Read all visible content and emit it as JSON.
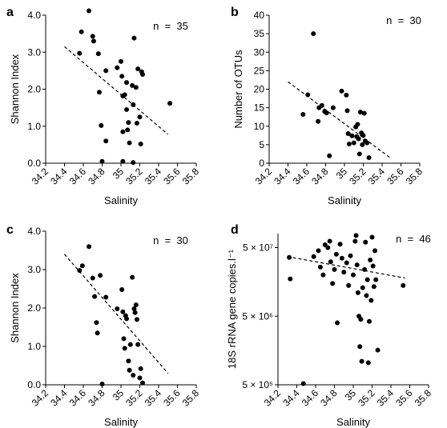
{
  "chart_data": [
    {
      "panel_label": "a",
      "type": "scatter",
      "xlabel": "Salinity",
      "ylabel": "Shannon Index",
      "n_label": "n  =  35",
      "xlim": [
        34.2,
        35.8
      ],
      "ylim": [
        0,
        4.0
      ],
      "xticks": [
        "34.2",
        "34.4",
        "34.6",
        "34.8",
        "35",
        "35.2",
        "35.4",
        "35.6",
        "35.8"
      ],
      "yticks": [
        "0.0",
        "1.0",
        "2.0",
        "3.0",
        "4.0"
      ],
      "yscale": "linear",
      "points": [
        {
          "x": 34.56,
          "y": 2.97
        },
        {
          "x": 34.58,
          "y": 3.55
        },
        {
          "x": 34.66,
          "y": 4.12
        },
        {
          "x": 34.7,
          "y": 3.43
        },
        {
          "x": 34.71,
          "y": 3.3
        },
        {
          "x": 34.76,
          "y": 2.96
        },
        {
          "x": 34.77,
          "y": 1.92
        },
        {
          "x": 34.79,
          "y": 1.02
        },
        {
          "x": 34.8,
          "y": 0.05
        },
        {
          "x": 34.84,
          "y": 0.6
        },
        {
          "x": 34.84,
          "y": 2.5
        },
        {
          "x": 34.96,
          "y": 2.58
        },
        {
          "x": 35.0,
          "y": 2.75
        },
        {
          "x": 35.01,
          "y": 2.35
        },
        {
          "x": 35.02,
          "y": 1.82
        },
        {
          "x": 35.02,
          "y": 0.85
        },
        {
          "x": 35.02,
          "y": 0.05
        },
        {
          "x": 35.04,
          "y": 1.85
        },
        {
          "x": 35.06,
          "y": 2.18
        },
        {
          "x": 35.06,
          "y": 1.45
        },
        {
          "x": 35.07,
          "y": 0.9
        },
        {
          "x": 35.08,
          "y": 1.1
        },
        {
          "x": 35.09,
          "y": 0.55
        },
        {
          "x": 35.12,
          "y": 2.1
        },
        {
          "x": 35.13,
          "y": 1.58
        },
        {
          "x": 35.13,
          "y": 0.02
        },
        {
          "x": 35.14,
          "y": 3.38
        },
        {
          "x": 35.16,
          "y": 2.05
        },
        {
          "x": 35.17,
          "y": 1.08
        },
        {
          "x": 35.18,
          "y": 2.55
        },
        {
          "x": 35.2,
          "y": 1.25
        },
        {
          "x": 35.21,
          "y": 0.52
        },
        {
          "x": 35.22,
          "y": 2.47
        },
        {
          "x": 35.23,
          "y": 2.4
        },
        {
          "x": 35.52,
          "y": 1.62
        }
      ],
      "trend": {
        "x": [
          34.4,
          35.5
        ],
        "y": [
          3.15,
          0.78
        ]
      }
    },
    {
      "panel_label": "b",
      "type": "scatter",
      "xlabel": "Salinity",
      "ylabel": "Number of OTUs",
      "n_label": "n  =  30",
      "xlim": [
        34.2,
        35.8
      ],
      "ylim": [
        0,
        40
      ],
      "xticks": [
        "34.2",
        "34.4",
        "34.6",
        "34.8",
        "35",
        "35.2",
        "35.4",
        "35.6",
        "35.8"
      ],
      "yticks": [
        "0",
        "5",
        "10",
        "15",
        "20",
        "25",
        "30",
        "35",
        "40"
      ],
      "yscale": "linear",
      "points": [
        {
          "x": 34.56,
          "y": 13.2
        },
        {
          "x": 34.61,
          "y": 18.5
        },
        {
          "x": 34.67,
          "y": 35.0
        },
        {
          "x": 34.72,
          "y": 11.3
        },
        {
          "x": 34.73,
          "y": 15.0
        },
        {
          "x": 34.76,
          "y": 15.6
        },
        {
          "x": 34.79,
          "y": 14.0
        },
        {
          "x": 34.81,
          "y": 13.6
        },
        {
          "x": 34.84,
          "y": 2.0
        },
        {
          "x": 34.88,
          "y": 15.0
        },
        {
          "x": 34.97,
          "y": 19.5
        },
        {
          "x": 35.02,
          "y": 18.4
        },
        {
          "x": 35.03,
          "y": 14.2
        },
        {
          "x": 35.04,
          "y": 8.0
        },
        {
          "x": 35.05,
          "y": 5.2
        },
        {
          "x": 35.08,
          "y": 7.4
        },
        {
          "x": 35.1,
          "y": 5.5
        },
        {
          "x": 35.12,
          "y": 9.8
        },
        {
          "x": 35.13,
          "y": 7.2
        },
        {
          "x": 35.14,
          "y": 10.5
        },
        {
          "x": 35.15,
          "y": 6.6
        },
        {
          "x": 35.16,
          "y": 2.5
        },
        {
          "x": 35.17,
          "y": 13.8
        },
        {
          "x": 35.18,
          "y": 8.2
        },
        {
          "x": 35.19,
          "y": 5.0
        },
        {
          "x": 35.2,
          "y": 7.5
        },
        {
          "x": 35.21,
          "y": 13.5
        },
        {
          "x": 35.22,
          "y": 6.0
        },
        {
          "x": 35.24,
          "y": 5.5
        },
        {
          "x": 35.26,
          "y": 1.5
        }
      ],
      "trend": {
        "x": [
          34.4,
          35.5
        ],
        "y": [
          22.0,
          1.2
        ]
      }
    },
    {
      "panel_label": "c",
      "type": "scatter",
      "xlabel": "Salinity",
      "ylabel": "Shannon Index",
      "n_label": "n  =  30",
      "xlim": [
        34.2,
        35.8
      ],
      "ylim": [
        0,
        4.0
      ],
      "xticks": [
        "34.2",
        "34.4",
        "34.6",
        "34.8",
        "35",
        "35.2",
        "35.4",
        "35.6",
        "35.8"
      ],
      "yticks": [
        "0.0",
        "1.0",
        "2.0",
        "3.0",
        "4.0"
      ],
      "yscale": "linear",
      "points": [
        {
          "x": 34.56,
          "y": 2.98
        },
        {
          "x": 34.59,
          "y": 3.1
        },
        {
          "x": 34.66,
          "y": 3.6
        },
        {
          "x": 34.7,
          "y": 2.78
        },
        {
          "x": 34.72,
          "y": 2.3
        },
        {
          "x": 34.74,
          "y": 1.62
        },
        {
          "x": 34.75,
          "y": 1.35
        },
        {
          "x": 34.78,
          "y": 2.85
        },
        {
          "x": 34.8,
          "y": 0.02
        },
        {
          "x": 34.84,
          "y": 2.28
        },
        {
          "x": 34.96,
          "y": 1.98
        },
        {
          "x": 35.01,
          "y": 2.48
        },
        {
          "x": 35.02,
          "y": 1.9
        },
        {
          "x": 35.03,
          "y": 1.2
        },
        {
          "x": 35.04,
          "y": 0.95
        },
        {
          "x": 35.05,
          "y": 1.8
        },
        {
          "x": 35.06,
          "y": 1.72
        },
        {
          "x": 35.08,
          "y": 0.62
        },
        {
          "x": 35.09,
          "y": 0.38
        },
        {
          "x": 35.1,
          "y": 1.05
        },
        {
          "x": 35.12,
          "y": 2.8
        },
        {
          "x": 35.13,
          "y": 0.25
        },
        {
          "x": 35.14,
          "y": 1.98
        },
        {
          "x": 35.15,
          "y": 1.88
        },
        {
          "x": 35.16,
          "y": 2.08
        },
        {
          "x": 35.17,
          "y": 1.7
        },
        {
          "x": 35.18,
          "y": 1.05
        },
        {
          "x": 35.2,
          "y": 0.18
        },
        {
          "x": 35.21,
          "y": 0.42
        },
        {
          "x": 35.23,
          "y": 0.05
        }
      ],
      "trend": {
        "x": [
          34.4,
          35.5
        ],
        "y": [
          3.4,
          0.3
        ]
      }
    },
    {
      "panel_label": "d",
      "type": "scatter",
      "xlabel": "Salinity",
      "ylabel": "18S rRNA gene copies.l⁻¹",
      "n_label": "n  =  46",
      "xlim": [
        34.2,
        35.8
      ],
      "ylim": [
        500000,
        80000000
      ],
      "xticks": [
        "34.2",
        "34.4",
        "34.6",
        "34.8",
        "35",
        "35.2",
        "35.4",
        "35.6",
        "35.8"
      ],
      "yticks": [
        "5 × 10⁵",
        "5 × 10⁶",
        "5 × 10⁷"
      ],
      "ytick_values": [
        500000,
        5000000,
        50000000
      ],
      "yscale": "log",
      "points": [
        {
          "x": 34.32,
          "y": 36000000
        },
        {
          "x": 34.33,
          "y": 17500000
        },
        {
          "x": 34.47,
          "y": 520000
        },
        {
          "x": 34.58,
          "y": 37000000
        },
        {
          "x": 34.63,
          "y": 45000000
        },
        {
          "x": 34.65,
          "y": 26000000
        },
        {
          "x": 34.68,
          "y": 20000000
        },
        {
          "x": 34.7,
          "y": 55000000
        },
        {
          "x": 34.73,
          "y": 50000000
        },
        {
          "x": 34.75,
          "y": 62000000
        },
        {
          "x": 34.76,
          "y": 31000000
        },
        {
          "x": 34.78,
          "y": 15000000
        },
        {
          "x": 34.8,
          "y": 24000000
        },
        {
          "x": 34.82,
          "y": 40000000
        },
        {
          "x": 34.83,
          "y": 4000000
        },
        {
          "x": 34.86,
          "y": 56000000
        },
        {
          "x": 34.88,
          "y": 35000000
        },
        {
          "x": 34.9,
          "y": 22000000
        },
        {
          "x": 34.93,
          "y": 30000000
        },
        {
          "x": 34.95,
          "y": 14000000
        },
        {
          "x": 34.97,
          "y": 38000000
        },
        {
          "x": 35.0,
          "y": 20000000
        },
        {
          "x": 35.02,
          "y": 62000000
        },
        {
          "x": 35.03,
          "y": 75000000
        },
        {
          "x": 35.04,
          "y": 28000000
        },
        {
          "x": 35.05,
          "y": 11000000
        },
        {
          "x": 35.06,
          "y": 5000000
        },
        {
          "x": 35.07,
          "y": 1800000
        },
        {
          "x": 35.08,
          "y": 4500000
        },
        {
          "x": 35.09,
          "y": 1100000
        },
        {
          "x": 35.1,
          "y": 13000000
        },
        {
          "x": 35.12,
          "y": 24000000
        },
        {
          "x": 35.13,
          "y": 60000000
        },
        {
          "x": 35.14,
          "y": 10000000
        },
        {
          "x": 35.15,
          "y": 17000000
        },
        {
          "x": 35.16,
          "y": 1050000
        },
        {
          "x": 35.17,
          "y": 4200000
        },
        {
          "x": 35.18,
          "y": 33000000
        },
        {
          "x": 35.19,
          "y": 8500000
        },
        {
          "x": 35.2,
          "y": 71000000
        },
        {
          "x": 35.21,
          "y": 27000000
        },
        {
          "x": 35.22,
          "y": 13500000
        },
        {
          "x": 35.23,
          "y": 45000000
        },
        {
          "x": 35.24,
          "y": 17000000
        },
        {
          "x": 35.26,
          "y": 1600000
        },
        {
          "x": 35.53,
          "y": 14000000
        }
      ],
      "trend": {
        "x": [
          34.3,
          35.55
        ],
        "y": [
          37000000,
          18000000
        ]
      }
    }
  ]
}
